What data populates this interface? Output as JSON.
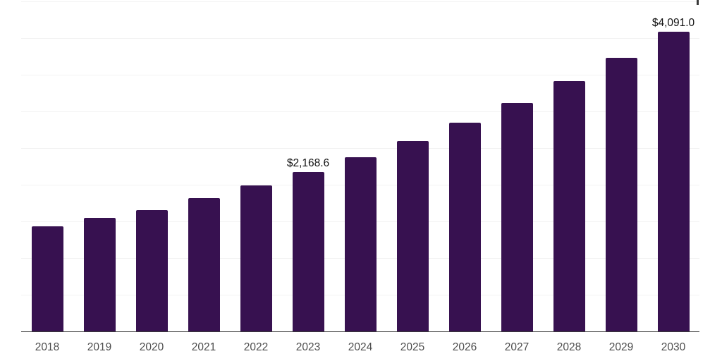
{
  "chart_data": {
    "type": "bar",
    "title": "",
    "xlabel": "",
    "ylabel": "",
    "categories": [
      "2018",
      "2019",
      "2020",
      "2021",
      "2022",
      "2023",
      "2024",
      "2025",
      "2026",
      "2027",
      "2028",
      "2029",
      "2030"
    ],
    "values": [
      1428,
      1549,
      1656,
      1815,
      1987,
      2168.6,
      2373,
      2598,
      2845,
      3115,
      3411,
      3735,
      4091.0
    ],
    "data_labels": [
      {
        "category_index": 5,
        "text": "$2,168.6"
      },
      {
        "category_index": 12,
        "text": "$4,091.0"
      }
    ],
    "ylim": [
      0,
      4500
    ],
    "gridline_step": 500,
    "grid": "horizontal",
    "legend": "none",
    "y_tick_labels_visible": false,
    "currency_unit": "$"
  },
  "colors": {
    "bar": "#371150",
    "gridline": "#f2f2f2",
    "axis_line": "#3a3a3a",
    "year_label": "#4d4d4d",
    "data_label": "#111111",
    "background": "#ffffff",
    "caret_artifact": "#3a3a3a"
  }
}
